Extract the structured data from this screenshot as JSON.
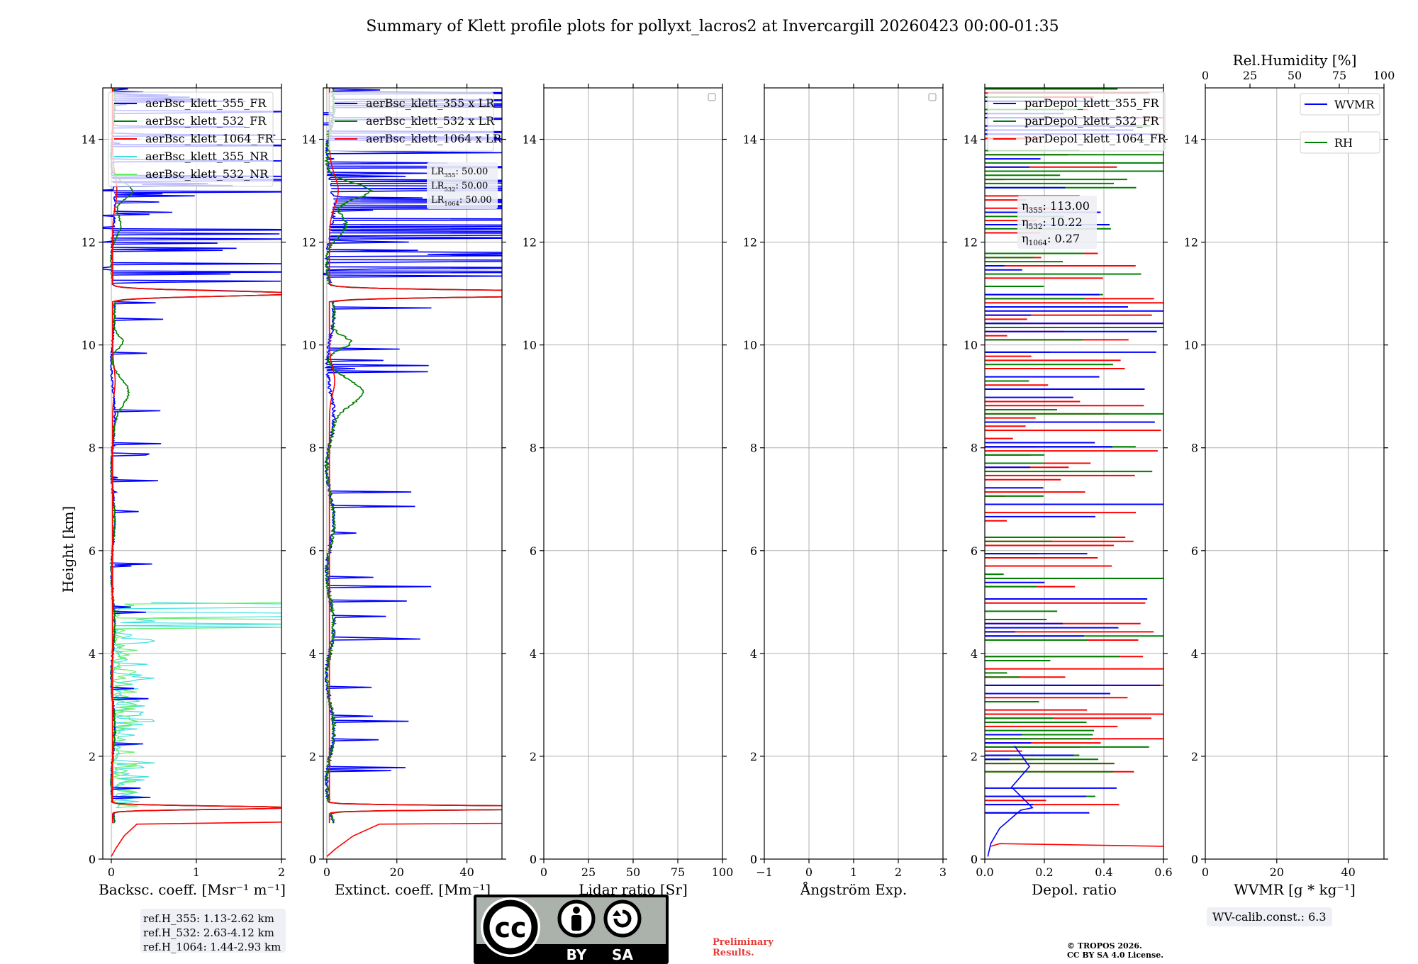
{
  "title": "Summary of Klett profile plots for pollyxt_lacros2 at Invercargill 20260423 00:00-01:35",
  "y_label": "Height [km]",
  "colors": {
    "c355": "#0000ff",
    "c532": "#008000",
    "c1064": "#ff0000",
    "c355nr": "#40e0e0",
    "c532nr": "#66ee66",
    "grid": "#b0b0b0",
    "note_red": "#e53935"
  },
  "chart_data": [
    {
      "id": "bsc",
      "type": "line",
      "xlabel": "Backsc. coeff. [Msr⁻¹ m⁻¹]",
      "xlim": [
        -0.1,
        2
      ],
      "xticks": [
        0,
        1,
        2
      ],
      "xtick_labels": [
        "0",
        "1",
        "2"
      ],
      "ylim": [
        0,
        15
      ],
      "yticks": [
        0,
        2,
        4,
        6,
        8,
        10,
        12,
        14
      ],
      "legend": [
        "aerBsc_klett_355_FR",
        "aerBsc_klett_532_FR",
        "aerBsc_klett_1064_FR",
        "aerBsc_klett_355_NR",
        "aerBsc_klett_532_NR"
      ],
      "legend_position": "top-center"
    },
    {
      "id": "ext",
      "type": "line",
      "xlabel": "Extinct. coeff. [Mm⁻¹]",
      "xlim": [
        -1,
        50
      ],
      "xticks": [
        0,
        20,
        40
      ],
      "xtick_labels": [
        "0",
        "20",
        "40"
      ],
      "ylim": [
        0,
        15
      ],
      "yticks": [
        0,
        2,
        4,
        6,
        8,
        10,
        12,
        14
      ],
      "legend": [
        "aerBsc_klett_355 x LR",
        "aerBsc_klett_532 x LR",
        "aerBsc_klett_1064 x LR"
      ],
      "legend_position": "top-center",
      "lr_annotation": [
        {
          "label": "LR",
          "sub": "355",
          "value": ": 50.00"
        },
        {
          "label": "LR",
          "sub": "532",
          "value": ": 50.00"
        },
        {
          "label": "LR",
          "sub": "1064",
          "value": ": 50.00"
        }
      ]
    },
    {
      "id": "lr",
      "type": "line",
      "xlabel": "Lidar ratio [Sr]",
      "xlim": [
        0,
        100
      ],
      "xticks": [
        0,
        25,
        50,
        75,
        100
      ],
      "xtick_labels": [
        "0",
        "25",
        "50",
        "75",
        "100"
      ],
      "ylim": [
        0,
        15
      ],
      "yticks": [
        0,
        2,
        4,
        6,
        8,
        10,
        12,
        14
      ],
      "legend": [],
      "legend_position": "top-right"
    },
    {
      "id": "ang",
      "type": "line",
      "xlabel": "Ångström Exp.",
      "xlim": [
        -1,
        3
      ],
      "xticks": [
        -1,
        0,
        1,
        2,
        3
      ],
      "xtick_labels": [
        "−1",
        "0",
        "1",
        "2",
        "3"
      ],
      "ylim": [
        0,
        15
      ],
      "yticks": [
        0,
        2,
        4,
        6,
        8,
        10,
        12,
        14
      ],
      "legend": [],
      "legend_position": "top-right"
    },
    {
      "id": "dep",
      "type": "line",
      "xlabel": "Depol. ratio",
      "xlim": [
        0,
        0.6
      ],
      "xticks": [
        0,
        0.2,
        0.4,
        0.6
      ],
      "xtick_labels": [
        "0.0",
        "0.2",
        "0.4",
        "0.6"
      ],
      "ylim": [
        0,
        15
      ],
      "yticks": [
        0,
        2,
        4,
        6,
        8,
        10,
        12,
        14
      ],
      "legend": [
        "parDepol_klett_355_FR",
        "parDepol_klett_532_FR",
        "parDepol_klett_1064_FR"
      ],
      "legend_position": "top-center",
      "eta_annotation": [
        {
          "label": "η",
          "sub": "355",
          "value": ": 113.00"
        },
        {
          "label": "η",
          "sub": "532",
          "value": ": 10.22"
        },
        {
          "label": "η",
          "sub": "1064",
          "value": ": 0.27"
        }
      ]
    },
    {
      "id": "wv",
      "type": "line",
      "xlabel": "WVMR [g * kg⁻¹]",
      "xlim": [
        0,
        50
      ],
      "xticks": [
        0,
        20,
        40
      ],
      "xtick_labels": [
        "0",
        "20",
        "40"
      ],
      "top_xlabel": "Rel.Humidity [%]",
      "top_xlim": [
        0,
        100
      ],
      "top_xticks": [
        0,
        25,
        50,
        75,
        100
      ],
      "top_xtick_labels": [
        "0",
        "25",
        "50",
        "75",
        "100"
      ],
      "ylim": [
        0,
        15
      ],
      "yticks": [
        0,
        2,
        4,
        6,
        8,
        10,
        12,
        14
      ],
      "legend": [
        "WVMR",
        "RH"
      ],
      "legend_position": "top-right"
    }
  ],
  "ref_heights": [
    "ref.H_355: 1.13-2.62 km",
    "ref.H_532: 2.63-4.12 km",
    "ref.H_1064: 1.44-2.93 km"
  ],
  "wv_calib": "WV-calib.const.: 6.3",
  "preliminary": [
    "Preliminary",
    "Results."
  ],
  "copyright": [
    "© TROPOS 2026.",
    "CC BY SA 4.0 License."
  ],
  "license_logo": {
    "cc": "cc",
    "by": "BY",
    "sa": "SA"
  }
}
